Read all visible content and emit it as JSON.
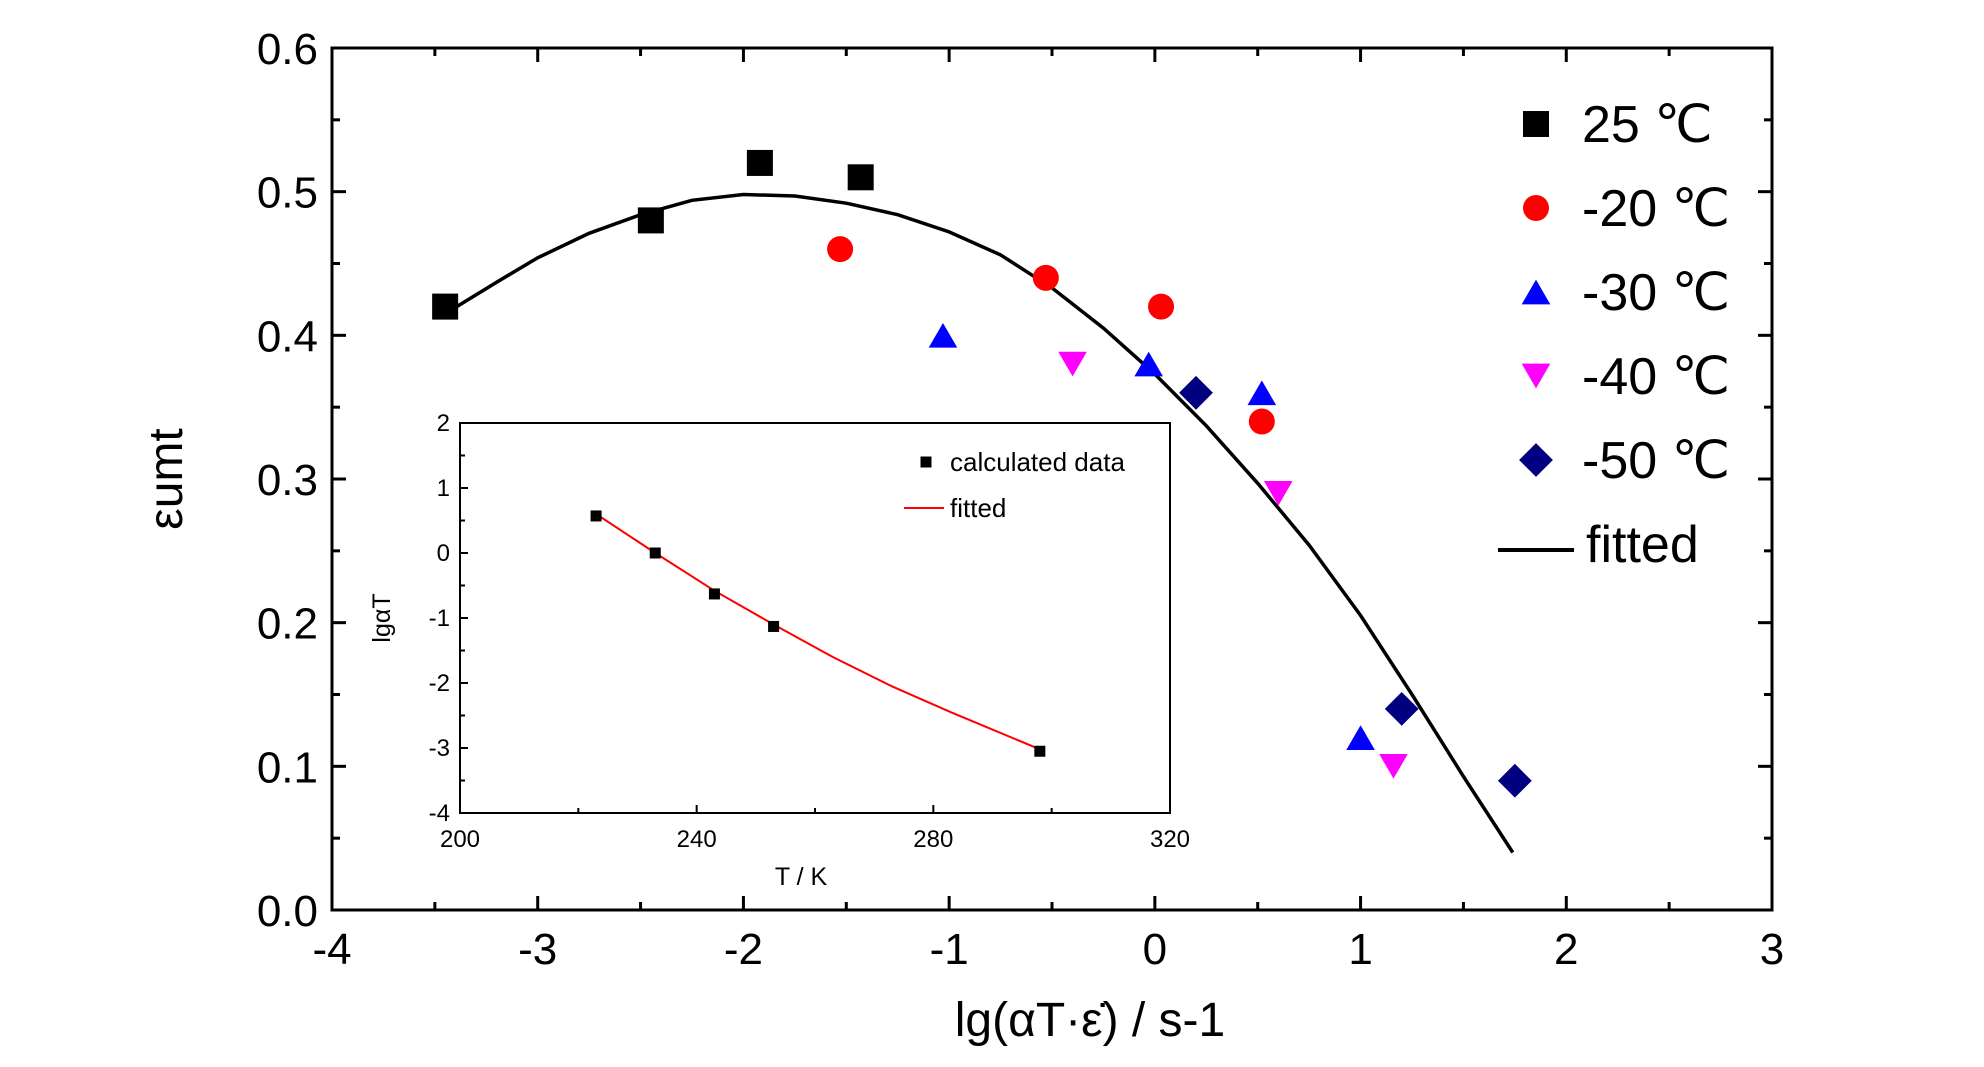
{
  "chart_data": [
    {
      "type": "scatter",
      "title": "",
      "xlabel": "lg(αT·ε̇) / s-1",
      "ylabel": "εumt",
      "xlim": [
        -4,
        3
      ],
      "ylim": [
        0.0,
        0.6
      ],
      "xticks": [
        -4,
        -3,
        -2,
        -1,
        0,
        1,
        2,
        3
      ],
      "xtick_labels": [
        "-4",
        "-3",
        "-2",
        "-1",
        "0",
        "1",
        "2",
        "3"
      ],
      "yticks": [
        0.0,
        0.1,
        0.2,
        0.3,
        0.4,
        0.5,
        0.6
      ],
      "ytick_labels": [
        "0.0",
        "0.1",
        "0.2",
        "0.3",
        "0.4",
        "0.5",
        "0.6"
      ],
      "grid": false,
      "legend_position": "top-right",
      "series": [
        {
          "name": "25 ℃",
          "marker": "square",
          "color": "#000000",
          "points": [
            {
              "x": -3.45,
              "y": 0.42
            },
            {
              "x": -2.45,
              "y": 0.48
            },
            {
              "x": -1.92,
              "y": 0.52
            },
            {
              "x": -1.43,
              "y": 0.51
            }
          ]
        },
        {
          "name": "-20 ℃",
          "marker": "circle",
          "color": "#ff0000",
          "points": [
            {
              "x": -1.53,
              "y": 0.46
            },
            {
              "x": -0.53,
              "y": 0.44
            },
            {
              "x": 0.03,
              "y": 0.42
            },
            {
              "x": 0.52,
              "y": 0.34
            }
          ]
        },
        {
          "name": "-30 ℃",
          "marker": "triangle-up",
          "color": "#0000ff",
          "points": [
            {
              "x": -1.03,
              "y": 0.4
            },
            {
              "x": -0.03,
              "y": 0.38
            },
            {
              "x": 0.52,
              "y": 0.36
            },
            {
              "x": 1.0,
              "y": 0.12
            }
          ]
        },
        {
          "name": "-40 ℃",
          "marker": "triangle-down",
          "color": "#ff00ff",
          "points": [
            {
              "x": -0.4,
              "y": 0.38
            },
            {
              "x": 0.6,
              "y": 0.29
            },
            {
              "x": 1.16,
              "y": 0.1
            }
          ]
        },
        {
          "name": "-50 ℃",
          "marker": "diamond",
          "color": "#000080",
          "points": [
            {
              "x": 0.2,
              "y": 0.36
            },
            {
              "x": 1.2,
              "y": 0.14
            },
            {
              "x": 1.75,
              "y": 0.09
            }
          ]
        },
        {
          "name": "fitted",
          "type": "line",
          "color": "#000000",
          "points": [
            {
              "x": -3.45,
              "y": 0.415
            },
            {
              "x": -3.2,
              "y": 0.437
            },
            {
              "x": -3.0,
              "y": 0.454
            },
            {
              "x": -2.75,
              "y": 0.471
            },
            {
              "x": -2.5,
              "y": 0.484
            },
            {
              "x": -2.25,
              "y": 0.494
            },
            {
              "x": -2.0,
              "y": 0.498
            },
            {
              "x": -1.75,
              "y": 0.497
            },
            {
              "x": -1.5,
              "y": 0.492
            },
            {
              "x": -1.25,
              "y": 0.484
            },
            {
              "x": -1.0,
              "y": 0.472
            },
            {
              "x": -0.75,
              "y": 0.456
            },
            {
              "x": -0.5,
              "y": 0.433
            },
            {
              "x": -0.25,
              "y": 0.405
            },
            {
              "x": 0.0,
              "y": 0.373
            },
            {
              "x": 0.25,
              "y": 0.337
            },
            {
              "x": 0.5,
              "y": 0.297
            },
            {
              "x": 0.75,
              "y": 0.254
            },
            {
              "x": 1.0,
              "y": 0.205
            },
            {
              "x": 1.25,
              "y": 0.15
            },
            {
              "x": 1.5,
              "y": 0.093
            },
            {
              "x": 1.74,
              "y": 0.04
            }
          ]
        }
      ]
    },
    {
      "type": "scatter",
      "title": "",
      "xlabel": "T / K",
      "ylabel": "lgαT",
      "xlim": [
        200,
        320
      ],
      "ylim": [
        -4,
        2
      ],
      "xticks": [
        200,
        240,
        280,
        320
      ],
      "xtick_labels": [
        "200",
        "240",
        "280",
        "320"
      ],
      "yticks": [
        -4,
        -3,
        -2,
        -1,
        0,
        1,
        2
      ],
      "ytick_labels": [
        "-4",
        "-3",
        "-2",
        "-1",
        "0",
        "1",
        "2"
      ],
      "grid": false,
      "legend_position": "top-right",
      "series": [
        {
          "name": "calculated data",
          "marker": "square",
          "color": "#000000",
          "points": [
            {
              "x": 223,
              "y": 0.57
            },
            {
              "x": 233,
              "y": 0.0
            },
            {
              "x": 243,
              "y": -0.63
            },
            {
              "x": 253,
              "y": -1.13
            },
            {
              "x": 298,
              "y": -3.05
            }
          ]
        },
        {
          "name": "fitted",
          "type": "line",
          "color": "#ff0000",
          "points": [
            {
              "x": 223,
              "y": 0.6
            },
            {
              "x": 233,
              "y": 0.0
            },
            {
              "x": 243,
              "y": -0.58
            },
            {
              "x": 253,
              "y": -1.1
            },
            {
              "x": 263,
              "y": -1.6
            },
            {
              "x": 273,
              "y": -2.05
            },
            {
              "x": 283,
              "y": -2.45
            },
            {
              "x": 298,
              "y": -3.02
            }
          ]
        }
      ]
    }
  ]
}
